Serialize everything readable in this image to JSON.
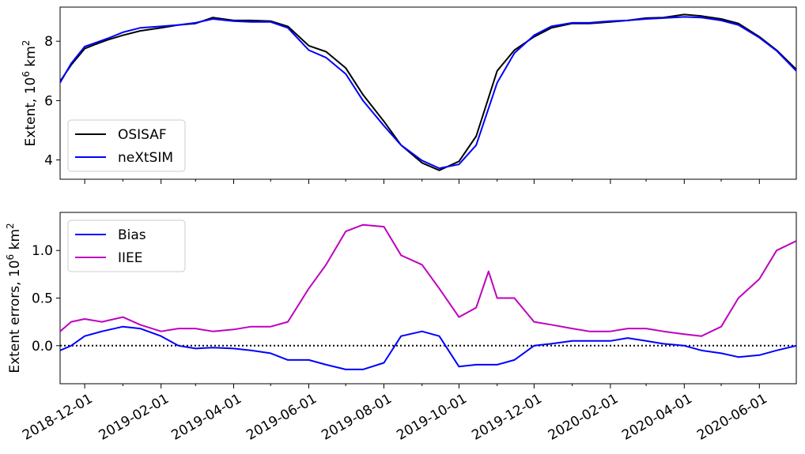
{
  "chart_data": [
    {
      "type": "line",
      "ylabel_main": "Extent, 10",
      "ylabel_sup": "6",
      "ylabel_unit": " km",
      "ylabel_sup2": "2",
      "ylim": [
        3.35,
        9.15
      ],
      "yticks": [
        "4",
        "6",
        "8"
      ],
      "legend_position": "lower-left",
      "series": [
        {
          "name": "OSISAF",
          "color": "#000000",
          "points": [
            [
              "2018-11-11",
              6.65
            ],
            [
              "2018-11-20",
              7.2
            ],
            [
              "2018-12-01",
              7.75
            ],
            [
              "2018-12-10",
              7.9
            ],
            [
              "2018-12-20",
              8.05
            ],
            [
              "2019-01-01",
              8.2
            ],
            [
              "2019-01-15",
              8.35
            ],
            [
              "2019-02-01",
              8.45
            ],
            [
              "2019-02-15",
              8.55
            ],
            [
              "2019-03-01",
              8.6
            ],
            [
              "2019-03-15",
              8.8
            ],
            [
              "2019-04-01",
              8.7
            ],
            [
              "2019-04-15",
              8.7
            ],
            [
              "2019-05-01",
              8.68
            ],
            [
              "2019-05-15",
              8.5
            ],
            [
              "2019-06-01",
              7.85
            ],
            [
              "2019-06-15",
              7.65
            ],
            [
              "2019-07-01",
              7.1
            ],
            [
              "2019-07-15",
              6.2
            ],
            [
              "2019-08-01",
              5.3
            ],
            [
              "2019-08-15",
              4.5
            ],
            [
              "2019-09-01",
              3.9
            ],
            [
              "2019-09-15",
              3.65
            ],
            [
              "2019-10-01",
              3.95
            ],
            [
              "2019-10-15",
              4.8
            ],
            [
              "2019-11-01",
              7.0
            ],
            [
              "2019-11-15",
              7.7
            ],
            [
              "2019-12-01",
              8.15
            ],
            [
              "2019-12-15",
              8.45
            ],
            [
              "2020-01-01",
              8.6
            ],
            [
              "2020-01-15",
              8.6
            ],
            [
              "2020-02-01",
              8.65
            ],
            [
              "2020-02-15",
              8.7
            ],
            [
              "2020-03-01",
              8.78
            ],
            [
              "2020-03-15",
              8.8
            ],
            [
              "2020-04-01",
              8.9
            ],
            [
              "2020-04-15",
              8.85
            ],
            [
              "2020-05-01",
              8.75
            ],
            [
              "2020-05-15",
              8.6
            ],
            [
              "2020-06-01",
              8.15
            ],
            [
              "2020-06-15",
              7.7
            ],
            [
              "2020-07-01",
              7.05
            ]
          ]
        },
        {
          "name": "neXtSIM",
          "color": "#0000ff",
          "points": [
            [
              "2018-11-11",
              6.6
            ],
            [
              "2018-11-20",
              7.25
            ],
            [
              "2018-12-01",
              7.82
            ],
            [
              "2018-12-10",
              7.95
            ],
            [
              "2018-12-20",
              8.1
            ],
            [
              "2019-01-01",
              8.3
            ],
            [
              "2019-01-15",
              8.45
            ],
            [
              "2019-02-01",
              8.5
            ],
            [
              "2019-02-15",
              8.55
            ],
            [
              "2019-03-01",
              8.62
            ],
            [
              "2019-03-15",
              8.75
            ],
            [
              "2019-04-01",
              8.68
            ],
            [
              "2019-04-15",
              8.65
            ],
            [
              "2019-05-01",
              8.65
            ],
            [
              "2019-05-15",
              8.45
            ],
            [
              "2019-06-01",
              7.7
            ],
            [
              "2019-06-15",
              7.45
            ],
            [
              "2019-07-01",
              6.9
            ],
            [
              "2019-07-15",
              6.0
            ],
            [
              "2019-08-01",
              5.15
            ],
            [
              "2019-08-15",
              4.5
            ],
            [
              "2019-09-01",
              3.98
            ],
            [
              "2019-09-15",
              3.72
            ],
            [
              "2019-10-01",
              3.85
            ],
            [
              "2019-10-15",
              4.5
            ],
            [
              "2019-11-01",
              6.6
            ],
            [
              "2019-11-15",
              7.6
            ],
            [
              "2019-12-01",
              8.2
            ],
            [
              "2019-12-15",
              8.5
            ],
            [
              "2020-01-01",
              8.62
            ],
            [
              "2020-01-15",
              8.62
            ],
            [
              "2020-02-01",
              8.68
            ],
            [
              "2020-02-15",
              8.7
            ],
            [
              "2020-03-01",
              8.75
            ],
            [
              "2020-03-15",
              8.78
            ],
            [
              "2020-04-01",
              8.82
            ],
            [
              "2020-04-15",
              8.8
            ],
            [
              "2020-05-01",
              8.7
            ],
            [
              "2020-05-15",
              8.55
            ],
            [
              "2020-06-01",
              8.12
            ],
            [
              "2020-06-15",
              7.68
            ],
            [
              "2020-07-01",
              7.0
            ]
          ]
        }
      ]
    },
    {
      "type": "line",
      "ylabel_main": "Extent errors, 10",
      "ylabel_sup": "6",
      "ylabel_unit": " km",
      "ylabel_sup2": "2",
      "ylim": [
        -0.4,
        1.4
      ],
      "yticks": [
        "0.0",
        "0.5",
        "1.0"
      ],
      "zero_line": "dotted",
      "legend_position": "upper-left",
      "series": [
        {
          "name": "Bias",
          "color": "#0000ff",
          "points": [
            [
              "2018-11-11",
              -0.05
            ],
            [
              "2018-11-20",
              0.0
            ],
            [
              "2018-12-01",
              0.1
            ],
            [
              "2018-12-15",
              0.15
            ],
            [
              "2019-01-01",
              0.2
            ],
            [
              "2019-01-15",
              0.18
            ],
            [
              "2019-02-01",
              0.1
            ],
            [
              "2019-02-15",
              0.0
            ],
            [
              "2019-03-01",
              -0.03
            ],
            [
              "2019-03-15",
              -0.02
            ],
            [
              "2019-04-01",
              -0.03
            ],
            [
              "2019-04-15",
              -0.05
            ],
            [
              "2019-05-01",
              -0.08
            ],
            [
              "2019-05-15",
              -0.15
            ],
            [
              "2019-06-01",
              -0.15
            ],
            [
              "2019-06-15",
              -0.2
            ],
            [
              "2019-07-01",
              -0.25
            ],
            [
              "2019-07-15",
              -0.25
            ],
            [
              "2019-08-01",
              -0.18
            ],
            [
              "2019-08-15",
              0.1
            ],
            [
              "2019-09-01",
              0.15
            ],
            [
              "2019-09-15",
              0.1
            ],
            [
              "2019-10-01",
              -0.22
            ],
            [
              "2019-10-15",
              -0.2
            ],
            [
              "2019-11-01",
              -0.2
            ],
            [
              "2019-11-15",
              -0.15
            ],
            [
              "2019-12-01",
              0.0
            ],
            [
              "2019-12-15",
              0.02
            ],
            [
              "2020-01-01",
              0.05
            ],
            [
              "2020-01-15",
              0.05
            ],
            [
              "2020-02-01",
              0.05
            ],
            [
              "2020-02-15",
              0.08
            ],
            [
              "2020-03-01",
              0.05
            ],
            [
              "2020-03-15",
              0.02
            ],
            [
              "2020-04-01",
              0.0
            ],
            [
              "2020-04-15",
              -0.05
            ],
            [
              "2020-05-01",
              -0.08
            ],
            [
              "2020-05-15",
              -0.12
            ],
            [
              "2020-06-01",
              -0.1
            ],
            [
              "2020-06-15",
              -0.05
            ],
            [
              "2020-07-01",
              0.0
            ]
          ]
        },
        {
          "name": "IIEE",
          "color": "#bf00bf",
          "points": [
            [
              "2018-11-11",
              0.15
            ],
            [
              "2018-11-20",
              0.25
            ],
            [
              "2018-12-01",
              0.28
            ],
            [
              "2018-12-15",
              0.25
            ],
            [
              "2019-01-01",
              0.3
            ],
            [
              "2019-01-15",
              0.22
            ],
            [
              "2019-02-01",
              0.15
            ],
            [
              "2019-02-15",
              0.18
            ],
            [
              "2019-03-01",
              0.18
            ],
            [
              "2019-03-15",
              0.15
            ],
            [
              "2019-04-01",
              0.17
            ],
            [
              "2019-04-15",
              0.2
            ],
            [
              "2019-05-01",
              0.2
            ],
            [
              "2019-05-15",
              0.25
            ],
            [
              "2019-06-01",
              0.6
            ],
            [
              "2019-06-15",
              0.85
            ],
            [
              "2019-07-01",
              1.2
            ],
            [
              "2019-07-15",
              1.27
            ],
            [
              "2019-08-01",
              1.25
            ],
            [
              "2019-08-15",
              0.95
            ],
            [
              "2019-09-01",
              0.85
            ],
            [
              "2019-09-15",
              0.6
            ],
            [
              "2019-10-01",
              0.3
            ],
            [
              "2019-10-15",
              0.4
            ],
            [
              "2019-10-25",
              0.78
            ],
            [
              "2019-11-01",
              0.5
            ],
            [
              "2019-11-15",
              0.5
            ],
            [
              "2019-12-01",
              0.25
            ],
            [
              "2019-12-15",
              0.22
            ],
            [
              "2020-01-01",
              0.18
            ],
            [
              "2020-01-15",
              0.15
            ],
            [
              "2020-02-01",
              0.15
            ],
            [
              "2020-02-15",
              0.18
            ],
            [
              "2020-03-01",
              0.18
            ],
            [
              "2020-03-15",
              0.15
            ],
            [
              "2020-04-01",
              0.12
            ],
            [
              "2020-04-15",
              0.1
            ],
            [
              "2020-05-01",
              0.2
            ],
            [
              "2020-05-15",
              0.5
            ],
            [
              "2020-06-01",
              0.7
            ],
            [
              "2020-06-15",
              1.0
            ],
            [
              "2020-07-01",
              1.1
            ]
          ]
        }
      ]
    }
  ],
  "x_axis": {
    "range": [
      "2018-11-11",
      "2020-07-01"
    ],
    "ticks": [
      "2018-12-01",
      "2019-02-01",
      "2019-04-01",
      "2019-06-01",
      "2019-08-01",
      "2019-10-01",
      "2019-12-01",
      "2020-02-01",
      "2020-04-01",
      "2020-06-01"
    ],
    "minor_ticks": [
      "2019-01-01",
      "2019-03-01",
      "2019-05-01",
      "2019-07-01",
      "2019-09-01",
      "2019-11-01",
      "2020-01-01",
      "2020-03-01",
      "2020-05-01"
    ]
  }
}
